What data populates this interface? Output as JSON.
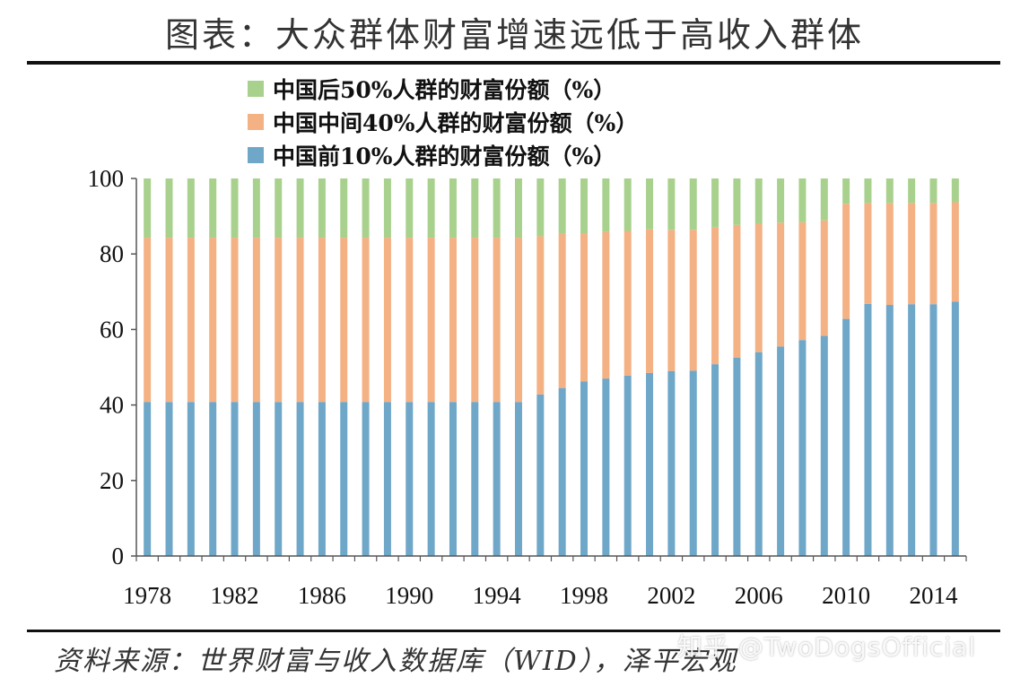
{
  "header": {
    "title": "图表：大众群体财富增速远低于高收入群体"
  },
  "footer": {
    "source": "资料来源：世界财富与收入数据库（WID），泽平宏观"
  },
  "watermark": {
    "text": "知乎 @TwoDogsOfficial"
  },
  "colors": {
    "bottom50": "#a9d18e",
    "middle40": "#f4b183",
    "top10": "#6fa7c9",
    "axis": "#555555"
  },
  "chart_data": {
    "type": "bar",
    "stacked": true,
    "categories": [
      "1978",
      "1979",
      "1980",
      "1981",
      "1982",
      "1983",
      "1984",
      "1985",
      "1986",
      "1987",
      "1988",
      "1989",
      "1990",
      "1991",
      "1992",
      "1993",
      "1994",
      "1995",
      "1996",
      "1997",
      "1998",
      "1999",
      "2000",
      "2001",
      "2002",
      "2003",
      "2004",
      "2005",
      "2006",
      "2007",
      "2008",
      "2009",
      "2010",
      "2011",
      "2012",
      "2013",
      "2014",
      "2015"
    ],
    "x_tick_labels": [
      "1978",
      "1982",
      "1986",
      "1990",
      "1994",
      "1998",
      "2002",
      "2006",
      "2010",
      "2014"
    ],
    "y_ticks": [
      0,
      20,
      40,
      60,
      80,
      100
    ],
    "ylim": [
      0,
      100
    ],
    "series": [
      {
        "name": "中国前10%人群的财富份额（%）",
        "key": "top10",
        "values": [
          40.8,
          40.8,
          40.8,
          40.8,
          40.8,
          40.8,
          40.8,
          40.8,
          40.8,
          40.8,
          40.8,
          40.8,
          40.8,
          40.8,
          40.8,
          40.8,
          40.8,
          40.8,
          42.8,
          44.5,
          46.2,
          47.0,
          47.8,
          48.5,
          49.0,
          49.1,
          50.8,
          52.5,
          54.0,
          55.5,
          57.2,
          58.3,
          62.8,
          66.8,
          66.5,
          66.7,
          66.7,
          67.4
        ]
      },
      {
        "name": "中国中间40%人群的财富份额（%）",
        "key": "middle40",
        "values": [
          43.5,
          43.5,
          43.5,
          43.5,
          43.5,
          43.5,
          43.5,
          43.5,
          43.5,
          43.5,
          43.5,
          43.5,
          43.5,
          43.5,
          43.5,
          43.5,
          43.5,
          43.5,
          41.9,
          40.8,
          39.3,
          38.9,
          38.3,
          38.0,
          37.4,
          37.3,
          36.2,
          35.2,
          34.0,
          32.8,
          31.2,
          30.6,
          30.5,
          26.7,
          27.0,
          26.8,
          26.8,
          26.3
        ]
      },
      {
        "name": "中国后50%人群的财富份额（%）",
        "key": "bottom50",
        "values": [
          15.7,
          15.7,
          15.7,
          15.7,
          15.7,
          15.7,
          15.7,
          15.7,
          15.7,
          15.7,
          15.7,
          15.7,
          15.7,
          15.7,
          15.7,
          15.7,
          15.7,
          15.7,
          15.3,
          14.7,
          14.5,
          14.1,
          13.9,
          13.5,
          13.6,
          13.6,
          13.0,
          12.3,
          12.0,
          11.7,
          11.6,
          11.1,
          6.7,
          6.5,
          6.5,
          6.5,
          6.5,
          6.3
        ]
      }
    ],
    "legend": [
      {
        "label": "中国后50%人群的财富份额（%）",
        "key": "bottom50"
      },
      {
        "label": "中国中间40%人群的财富份额（%）",
        "key": "middle40"
      },
      {
        "label": "中国前10%人群的财富份额（%）",
        "key": "top10"
      }
    ],
    "legend_position": "top-center",
    "grid": false
  }
}
